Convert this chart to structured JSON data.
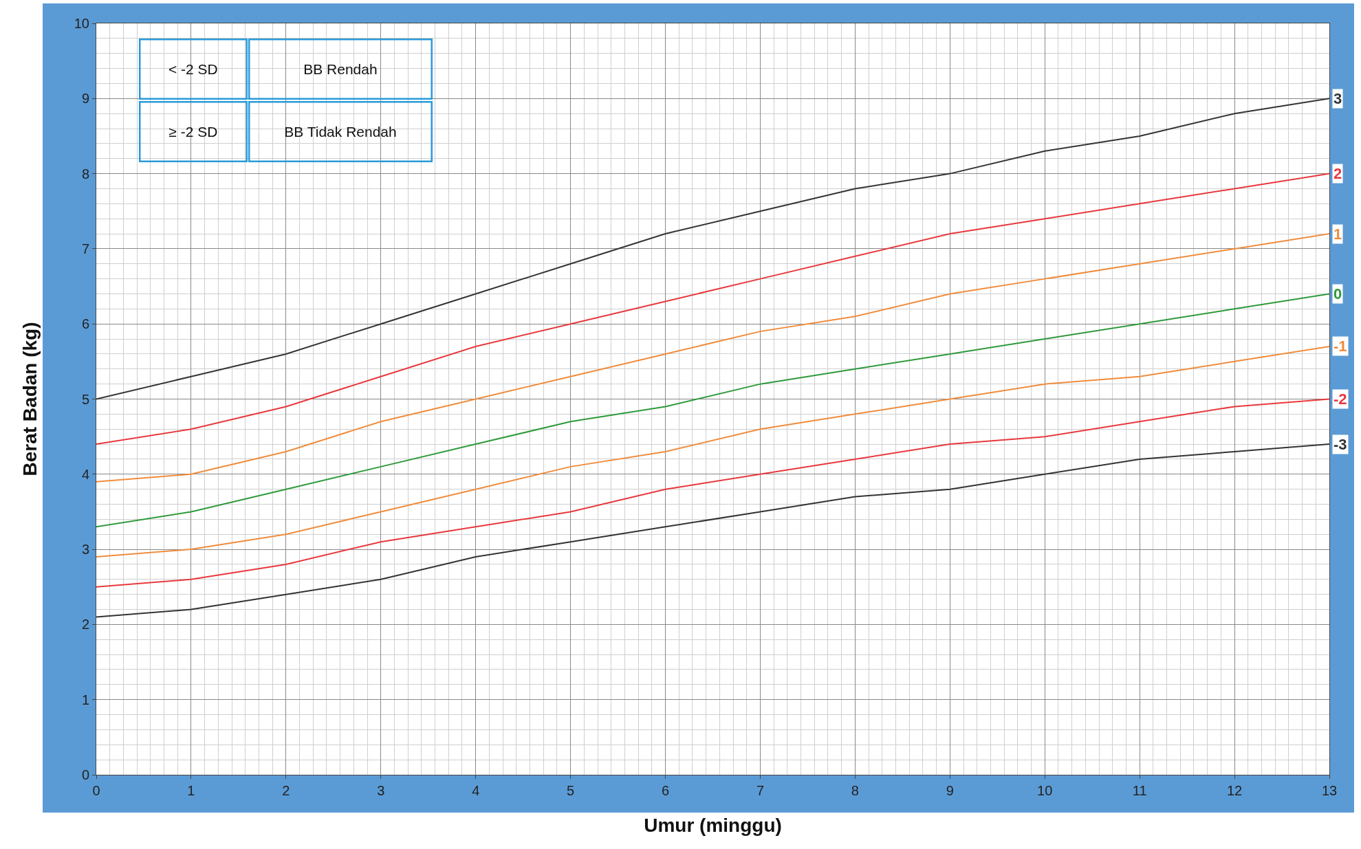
{
  "chart_data": {
    "type": "line",
    "xlabel": "Umur (minggu)",
    "ylabel": "Berat Badan (kg)",
    "x": [
      0,
      1,
      2,
      3,
      4,
      5,
      6,
      7,
      8,
      9,
      10,
      11,
      12,
      13
    ],
    "series": [
      {
        "name": "3",
        "color": "#333333",
        "values": [
          5.0,
          5.3,
          5.6,
          6.0,
          6.4,
          6.8,
          7.2,
          7.5,
          7.8,
          8.0,
          8.3,
          8.5,
          8.8,
          9.0
        ]
      },
      {
        "name": "2",
        "color": "#e8383d",
        "values": [
          4.4,
          4.6,
          4.9,
          5.3,
          5.7,
          6.0,
          6.3,
          6.6,
          6.9,
          7.2,
          7.4,
          7.6,
          7.8,
          8.0
        ]
      },
      {
        "name": "1",
        "color": "#f08c3c",
        "values": [
          3.9,
          4.0,
          4.3,
          4.7,
          5.0,
          5.3,
          5.6,
          5.9,
          6.1,
          6.4,
          6.6,
          6.8,
          7.0,
          7.2
        ]
      },
      {
        "name": "0",
        "color": "#2e9a3a",
        "values": [
          3.3,
          3.5,
          3.8,
          4.1,
          4.4,
          4.7,
          4.9,
          5.2,
          5.4,
          5.6,
          5.8,
          6.0,
          6.2,
          6.4
        ]
      },
      {
        "name": "-1",
        "color": "#f08c3c",
        "values": [
          2.9,
          3.0,
          3.2,
          3.5,
          3.8,
          4.1,
          4.3,
          4.6,
          4.8,
          5.0,
          5.2,
          5.3,
          5.5,
          5.7
        ]
      },
      {
        "name": "-2",
        "color": "#e8383d",
        "values": [
          2.5,
          2.6,
          2.8,
          3.1,
          3.3,
          3.5,
          3.8,
          4.0,
          4.2,
          4.4,
          4.5,
          4.7,
          4.9,
          5.0
        ]
      },
      {
        "name": "-3",
        "color": "#333333",
        "values": [
          2.1,
          2.2,
          2.4,
          2.6,
          2.9,
          3.1,
          3.3,
          3.5,
          3.7,
          3.8,
          4.0,
          4.2,
          4.3,
          4.4
        ]
      }
    ],
    "xlim": [
      0,
      13
    ],
    "xticks": [
      0,
      1,
      2,
      3,
      4,
      5,
      6,
      7,
      8,
      9,
      10,
      11,
      12,
      13
    ],
    "ylim": [
      0,
      10
    ],
    "yticks": [
      0,
      1,
      2,
      3,
      4,
      5,
      6,
      7,
      8,
      9,
      10
    ],
    "grid": true,
    "legend": false,
    "marker": "none",
    "line_style": "solid",
    "annotations": [
      "< -2 SD",
      "BB Rendah",
      "≥ -2 SD",
      "BB Tidak Rendah"
    ]
  }
}
